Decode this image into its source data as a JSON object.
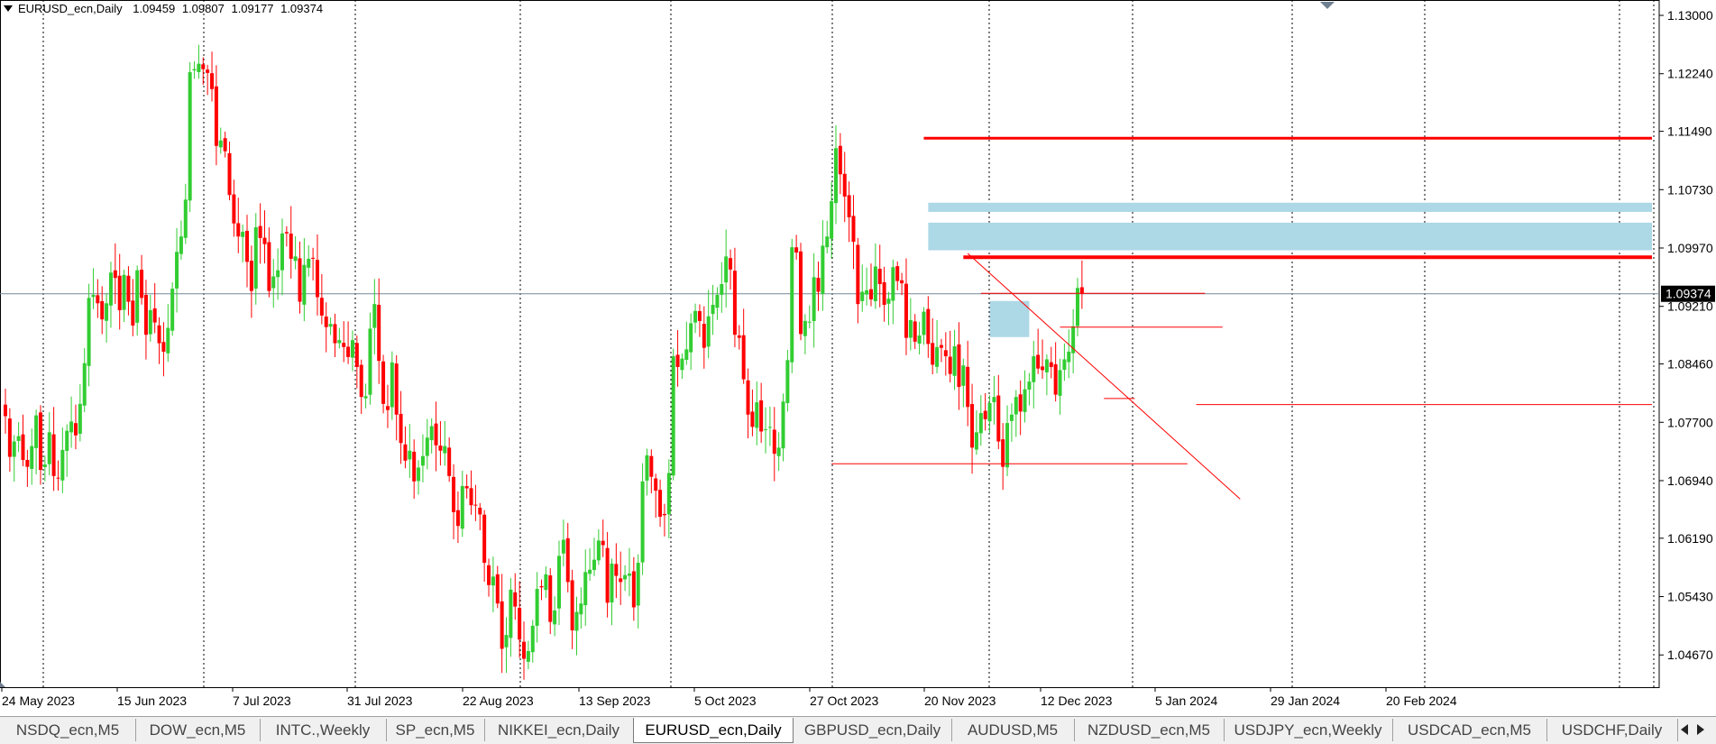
{
  "chart_header": {
    "symbol": "EURUSD_ecn,Daily",
    "open": "1.09459",
    "high": "1.09807",
    "low": "1.09177",
    "close": "1.09374"
  },
  "colors": {
    "bull": "#32cd32",
    "bear": "#ff0000",
    "zone": "#add8e6",
    "bid_line": "#778899",
    "grid": "#000000",
    "price_label_bg": "#000000"
  },
  "chart_data": {
    "type": "candlestick",
    "symbol": "EURUSD_ecn",
    "timeframe": "Daily",
    "ylim": [
      1.0425,
      1.132
    ],
    "y_ticks": [
      "1.13000",
      "1.12240",
      "1.11490",
      "1.10730",
      "1.09970",
      "1.09210",
      "1.08460",
      "1.07700",
      "1.06940",
      "1.06190",
      "1.05430",
      "1.04670"
    ],
    "x_labels": [
      "24 May 2023",
      "15 Jun 2023",
      "7 Jul 2023",
      "31 Jul 2023",
      "22 Aug 2023",
      "13 Sep 2023",
      "5 Oct 2023",
      "27 Oct 2023",
      "20 Nov 2023",
      "12 Dec 2023",
      "5 Jan 2024",
      "29 Jan 2024",
      "20 Feb 2024"
    ],
    "current_price": "1.09374",
    "current_price_value": 1.09374,
    "closes": [
      1.0778,
      1.0725,
      1.0745,
      1.0752,
      1.0721,
      1.0712,
      1.0739,
      1.0779,
      1.0708,
      1.0715,
      1.0757,
      1.07,
      1.0697,
      1.0734,
      1.0759,
      1.0771,
      1.0753,
      1.0794,
      1.0847,
      1.0932,
      1.0936,
      1.0925,
      1.0904,
      1.0925,
      1.0965,
      1.0958,
      1.0916,
      1.0962,
      1.0927,
      1.0896,
      1.0968,
      1.0932,
      1.0884,
      1.0916,
      1.09,
      1.0873,
      1.0862,
      1.0893,
      1.0944,
      1.0992,
      1.1012,
      1.106,
      1.1226,
      1.123,
      1.1237,
      1.123,
      1.1225,
      1.1204,
      1.113,
      1.1137,
      1.1123,
      1.1066,
      1.1029,
      1.1012,
      1.1018,
      1.0979,
      1.0941,
      1.1024,
      1.101,
      1.1002,
      1.0941,
      1.096,
      1.0968,
      1.1016,
      1.1016,
      1.0983,
      1.0986,
      1.0927,
      1.0975,
      1.0983,
      1.0983,
      1.0933,
      1.0909,
      1.0894,
      1.0898,
      1.0873,
      1.0877,
      1.0868,
      1.0855,
      1.0877,
      1.0842,
      1.0803,
      1.0804,
      1.0892,
      1.0924,
      1.085,
      1.0794,
      1.0786,
      1.0848,
      1.078,
      1.0743,
      1.072,
      1.0733,
      1.0693,
      1.0711,
      1.0726,
      1.075,
      1.0765,
      1.074,
      1.0733,
      1.0739,
      1.07,
      1.0653,
      1.0635,
      1.0687,
      1.0684,
      1.0662,
      1.0662,
      1.065,
      1.0587,
      1.0558,
      1.0569,
      1.0534,
      1.0475,
      1.0493,
      1.0552,
      1.053,
      1.0487,
      1.0462,
      1.0472,
      1.0505,
      1.0553,
      1.0555,
      1.0572,
      1.051,
      1.0525,
      1.0596,
      1.0617,
      1.0562,
      1.0499,
      1.0523,
      1.0534,
      1.0575,
      1.0578,
      1.0591,
      1.0616,
      1.061,
      1.0535,
      1.0586,
      1.057,
      1.0562,
      1.0571,
      1.0573,
      1.0529,
      1.0587,
      1.0693,
      1.0727,
      1.0699,
      1.0681,
      1.0647,
      1.0649,
      1.0704,
      1.0856,
      1.0842,
      1.0853,
      1.0865,
      1.0899,
      1.0915,
      1.0902,
      1.0867,
      1.0908,
      1.0923,
      1.0936,
      1.095,
      1.0986,
      1.0969,
      1.0884,
      1.088,
      1.0826,
      1.078,
      1.0764,
      1.0796,
      1.0758,
      1.0761,
      1.0764,
      1.0729,
      1.0737,
      1.0797,
      1.0851,
      1.0998,
      1.0991,
      1.0885,
      1.0902,
      1.0901,
      1.0959,
      1.094,
      1.1,
      1.1012,
      1.1058,
      1.1127,
      1.1093,
      1.1064,
      1.1037,
      1.1005,
      1.0924,
      1.094,
      1.0942,
      1.093,
      1.0973,
      1.095,
      1.0923,
      1.0931,
      1.0972,
      1.0954,
      1.0951,
      1.088,
      1.0903,
      1.0875,
      1.0883,
      1.0914,
      1.0872,
      1.0845,
      1.0868,
      1.0867,
      1.0856,
      1.0833,
      1.0869,
      1.0816,
      1.0844,
      1.079,
      1.0737,
      1.0757,
      1.0782,
      1.0774,
      1.0795,
      1.0803,
      1.0745,
      1.0712,
      1.0769,
      1.078,
      1.0803,
      1.0784,
      1.0813,
      1.0823,
      1.0856,
      1.084,
      1.0838,
      1.0852,
      1.0842,
      1.0806,
      1.0838,
      1.0852,
      1.0862,
      1.0895,
      1.0945,
      1.0937
    ],
    "volatility_note": ""
  },
  "drawings": {
    "horizontal_lines": [
      {
        "price": 1.114,
        "from_bar": 209,
        "to_bar": "end",
        "color": "#ff0000",
        "width": 3
      },
      {
        "price": 1.0985,
        "from_bar": 218,
        "to_bar": "end",
        "color": "#ff0000",
        "width": 4
      },
      {
        "price": 1.0938,
        "from_bar": 222,
        "to_bar": 273,
        "color": "#ff0000",
        "width": 1
      },
      {
        "price": 1.0894,
        "from_bar": 240,
        "to_bar": 277,
        "color": "#ff0000",
        "width": 1
      },
      {
        "price": 1.0793,
        "from_bar": 271,
        "to_bar": "end",
        "color": "#ff0000",
        "width": 1
      },
      {
        "price": 1.0716,
        "from_bar": 188,
        "to_bar": 269,
        "color": "#ff0000",
        "width": 1
      },
      {
        "price": 1.0801,
        "from_bar": 250,
        "to_bar": 257,
        "color": "#ff0000",
        "width": 1
      }
    ],
    "trendline": {
      "from_bar": 219,
      "from_price": 1.099,
      "to_bar": 281,
      "to_price": 1.067,
      "color": "#ff0000"
    },
    "zones": [
      {
        "top": 1.1056,
        "bottom": 1.1044,
        "from_bar": 210,
        "to_bar": "end",
        "color": "#add8e6"
      },
      {
        "top": 1.103,
        "bottom": 1.0994,
        "from_bar": 210,
        "to_bar": "end",
        "color": "#add8e6"
      },
      {
        "top": 1.0928,
        "bottom": 1.0881,
        "from_bar": 224,
        "to_bar": 233,
        "color": "#add8e6"
      }
    ]
  },
  "tabs": [
    {
      "label": "NSDQ_ecn,M5",
      "active": false
    },
    {
      "label": "DOW_ecn,M5",
      "active": false
    },
    {
      "label": "INTC.,Weekly",
      "active": false
    },
    {
      "label": "SP_ecn,M5",
      "active": false
    },
    {
      "label": "NIKKEI_ecn,Daily",
      "active": false
    },
    {
      "label": "EURUSD_ecn,Daily",
      "active": true
    },
    {
      "label": "GBPUSD_ecn,Daily",
      "active": false
    },
    {
      "label": "AUDUSD,M5",
      "active": false
    },
    {
      "label": "NZDUSD_ecn,M5",
      "active": false
    },
    {
      "label": "USDJPY_ecn,Weekly",
      "active": false
    },
    {
      "label": "USDCAD_ecn,M5",
      "active": false
    },
    {
      "label": "USDCHF,Daily",
      "active": false
    }
  ]
}
